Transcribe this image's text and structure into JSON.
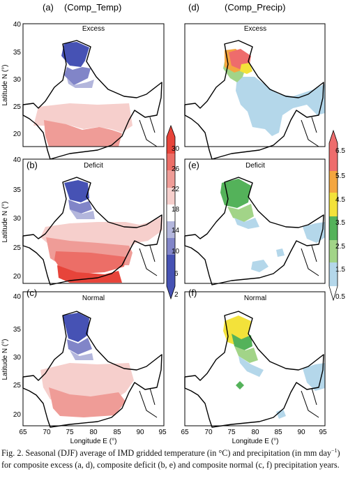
{
  "figure": {
    "column_headers": [
      "(Comp_Temp)",
      "(Comp_Precip)"
    ],
    "panels": [
      {
        "label": "(a)",
        "title": "Excess"
      },
      {
        "label": "(b)",
        "title": "Deficit"
      },
      {
        "label": "(c)",
        "title": "Normal"
      },
      {
        "label": "(d)",
        "title": "Excess"
      },
      {
        "label": "(e)",
        "title": "Deficit"
      },
      {
        "label": "(f)",
        "title": "Normal"
      }
    ],
    "y_axis_label": "Latitude N (°)",
    "x_axis_label": "Longitude E (°)",
    "lat_ticks": [
      "40",
      "35",
      "30",
      "25",
      "20"
    ],
    "lon_ticks": [
      "65",
      "70",
      "75",
      "80",
      "85",
      "90",
      "95"
    ],
    "temp_colorbar": {
      "ticks": [
        "30",
        "26",
        "22",
        "18",
        "14",
        "10",
        "6",
        "2"
      ],
      "colors": [
        "#e7443a",
        "#ec6e67",
        "#ef9c97",
        "#f6cfcc",
        "#ffffff",
        "#b3b6dc",
        "#8185c8",
        "#4652b4"
      ]
    },
    "precip_colorbar": {
      "ticks": [
        "6.5",
        "5.5",
        "4.5",
        "3.5",
        "2.5",
        "1.5",
        "0.5"
      ],
      "colors": [
        "#ee6c6c",
        "#f4a640",
        "#f3e23a",
        "#54b25a",
        "#a2d488",
        "#b4d7ea"
      ]
    }
  },
  "caption": {
    "part1": "Fig. 2. Seasonal (DJF) average of IMD gridded temperature (in °C) and precipitation (in mm day",
    "sup": "−1",
    "part2": ") for composite excess (a, d), composite deficit (b, e) and composite normal (c, f) precipitation years."
  }
}
